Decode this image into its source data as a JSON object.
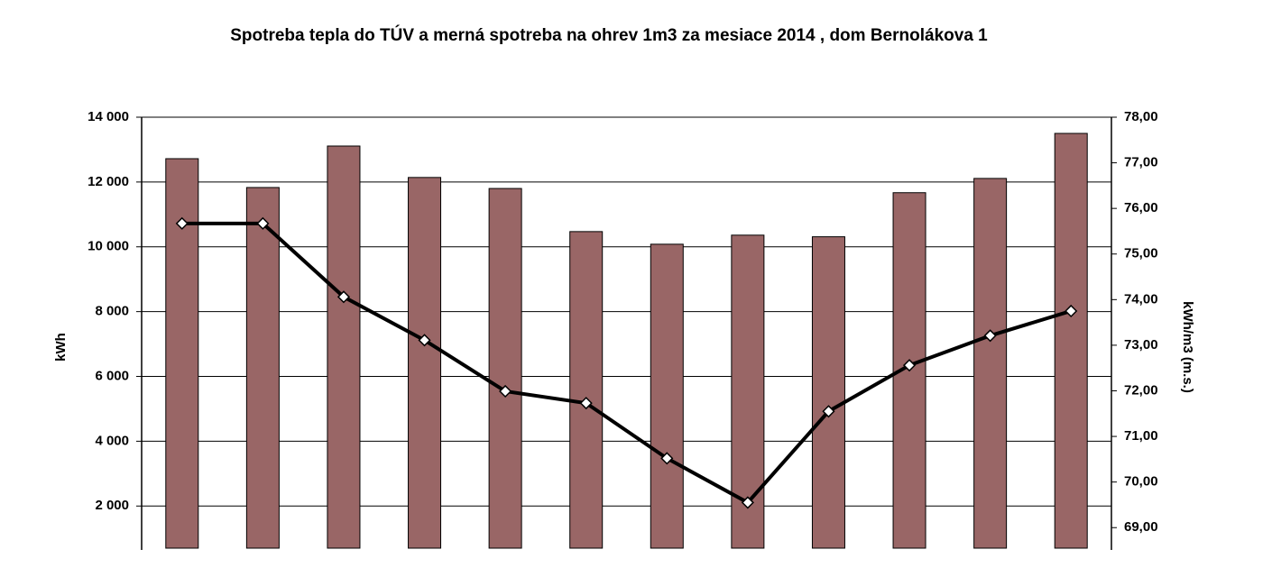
{
  "chart_data": {
    "type": "bar-line",
    "title": "Spotreba tepla do TÚV a merná spotreba na ohrev 1m3 za mesiace 2014 , dom Bernolákova 1",
    "y_label": "kWh",
    "y2_label": "kWh/m3 (m.s.)",
    "categories": [
      null,
      null,
      null,
      null,
      null,
      null,
      null,
      null,
      null,
      null,
      null,
      null
    ],
    "series": [
      {
        "type": "bar",
        "color": "#996666",
        "values": [
          12720,
          11830,
          13110,
          12140,
          11800,
          10470,
          10080,
          10360,
          10310,
          11670,
          12110,
          13500
        ]
      },
      {
        "type": "line",
        "axis": "y2",
        "color": "#000000",
        "values": [
          75.67,
          75.67,
          74.06,
          73.11,
          71.99,
          71.73,
          70.52,
          69.55,
          71.55,
          72.56,
          73.21,
          73.75
        ]
      }
    ],
    "ylim": [
      700,
      14000
    ],
    "yticks": [
      {
        "value": 2000,
        "label": "2 000"
      },
      {
        "value": 4000,
        "label": "4 000"
      },
      {
        "value": 6000,
        "label": "6 000"
      },
      {
        "value": 8000,
        "label": "8 000"
      },
      {
        "value": 10000,
        "label": "10 000"
      },
      {
        "value": 12000,
        "label": "12 000"
      },
      {
        "value": 14000,
        "label": "14 000"
      }
    ],
    "y2lim": [
      68.55,
      78
    ],
    "y2ticks": [
      {
        "value": 69,
        "label": "69,00"
      },
      {
        "value": 70,
        "label": "70,00"
      },
      {
        "value": 71,
        "label": "71,00"
      },
      {
        "value": 72,
        "label": "72,00"
      },
      {
        "value": 73,
        "label": "73,00"
      },
      {
        "value": 74,
        "label": "74,00"
      },
      {
        "value": 75,
        "label": "75,00"
      },
      {
        "value": 76,
        "label": "76,00"
      },
      {
        "value": 77,
        "label": "77,00"
      },
      {
        "value": 78,
        "label": "78,00"
      }
    ],
    "grid": true
  }
}
